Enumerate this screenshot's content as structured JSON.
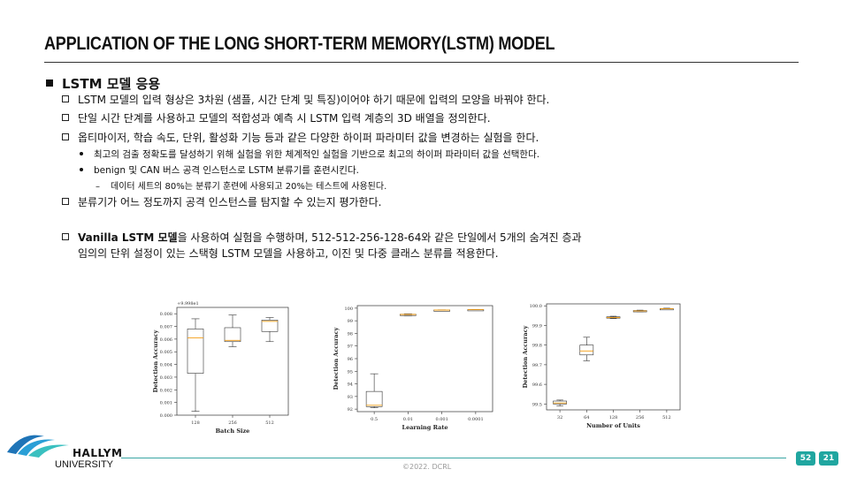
{
  "slide": {
    "title": "APPLICATION OF THE LONG SHORT-TERM MEMORY(LSTM) MODEL",
    "heading": "LSTM 모델 응용",
    "bullets": [
      {
        "level": 1,
        "text": "LSTM 모델의 입력 형상은 3차원 (샘플, 시간 단계 및 특징)이어야 하기 때문에 입력의 모양을 바꿔야 한다."
      },
      {
        "level": 1,
        "text": "단일 시간 단계를 사용하고 모델의 적합성과 예측 시 LSTM 입력 계층의 3D 배열을 정의한다."
      },
      {
        "level": 1,
        "text": "옵티마이저, 학습 속도, 단위, 활성화 기능 등과 같은 다양한 하이퍼 파라미터 값을 변경하는 실험을 한다."
      },
      {
        "level": 2,
        "text": "최고의 검출 정확도를 달성하기 위해 실험을 위한 체계적인 실험을 기반으로 최고의 하이퍼 파라미터 값을 선택한다."
      },
      {
        "level": 2,
        "text": "benign 및 CAN 버스 공격 인스턴스로 LSTM 분류기를 훈련시킨다."
      },
      {
        "level": 3,
        "text": "데이터 세트의 80%는 분류기 훈련에 사용되고 20%는 테스트에 사용된다."
      },
      {
        "level": 1,
        "text": "분류기가 어느 정도까지 공격 인스턴스를 탐지할 수 있는지 평가한다."
      }
    ],
    "vanilla": {
      "bold": "Vanilla LSTM 모델",
      "rest": "을 사용하여 실험을 수행하며, 512-512-256-128-64와 같은 단일에서 5개의 숨겨진 층과",
      "line2": "임의의 단위 설정이 있는 스택형 LSTM 모델을 사용하고, 이진 및 다중 클래스 분류를 적용한다."
    },
    "markers": {
      "l1": "",
      "l3": "–"
    }
  },
  "footer": {
    "hallym": "HALLYM",
    "university": "UNIVERSITY",
    "copyright": "©2022. DCRL",
    "page_a": "52",
    "page_b": "21"
  },
  "colors": {
    "accent": "#20a6a0",
    "box_median": "#f39c12",
    "logo_blue": "#1f74b7"
  },
  "chart_data": [
    {
      "type": "box",
      "xlabel": "Batch Size",
      "ylabel": "Detection Accuracy",
      "offset_label": "+9.998e1",
      "categories": [
        "128",
        "256",
        "512"
      ],
      "yticks": [
        "0.000",
        "0.001",
        "0.002",
        "0.003",
        "0.004",
        "0.005",
        "0.006",
        "0.007",
        "0.008"
      ],
      "ylim": [
        0,
        0.0085
      ],
      "boxes": [
        {
          "min": 0.0003,
          "q1": 0.0033,
          "median": 0.0061,
          "q3": 0.0068,
          "max": 0.0076
        },
        {
          "min": 0.0054,
          "q1": 0.0058,
          "median": 0.0059,
          "q3": 0.0069,
          "max": 0.0079
        },
        {
          "min": 0.0058,
          "q1": 0.0066,
          "median": 0.0074,
          "q3": 0.0075,
          "max": 0.0077
        }
      ]
    },
    {
      "type": "box",
      "xlabel": "Learning Rate",
      "ylabel": "Detection Accuracy",
      "categories": [
        "0.5",
        "0.01",
        "0.001",
        "0.0001"
      ],
      "yticks": [
        "92",
        "93",
        "94",
        "95",
        "96",
        "97",
        "98",
        "99",
        "100"
      ],
      "ylim": [
        91.8,
        100.2
      ],
      "boxes": [
        {
          "min": 92.1,
          "q1": 92.2,
          "median": 92.3,
          "q3": 93.4,
          "max": 94.8
        },
        {
          "min": 99.4,
          "q1": 99.45,
          "median": 99.5,
          "q3": 99.52,
          "max": 99.55
        },
        {
          "min": 99.82,
          "q1": 99.84,
          "median": 99.85,
          "q3": 99.86,
          "max": 99.87
        },
        {
          "min": 99.86,
          "q1": 99.87,
          "median": 99.88,
          "q3": 99.89,
          "max": 99.9
        }
      ]
    },
    {
      "type": "box",
      "xlabel": "Number of Units",
      "ylabel": "Detection Accuracy",
      "categories": [
        "32",
        "64",
        "128",
        "256",
        "512"
      ],
      "yticks": [
        "99.5",
        "99.6",
        "99.7",
        "99.8",
        "99.9",
        "100.0"
      ],
      "ylim": [
        99.47,
        100.01
      ],
      "boxes": [
        {
          "min": 99.49,
          "q1": 99.5,
          "median": 99.505,
          "q3": 99.515,
          "max": 99.52
        },
        {
          "min": 99.72,
          "q1": 99.75,
          "median": 99.77,
          "q3": 99.8,
          "max": 99.84
        },
        {
          "min": 99.935,
          "q1": 99.938,
          "median": 99.94,
          "q3": 99.944,
          "max": 99.947
        },
        {
          "min": 99.97,
          "q1": 99.972,
          "median": 99.974,
          "q3": 99.976,
          "max": 99.978
        },
        {
          "min": 99.982,
          "q1": 99.984,
          "median": 99.985,
          "q3": 99.986,
          "max": 99.988
        }
      ]
    }
  ]
}
